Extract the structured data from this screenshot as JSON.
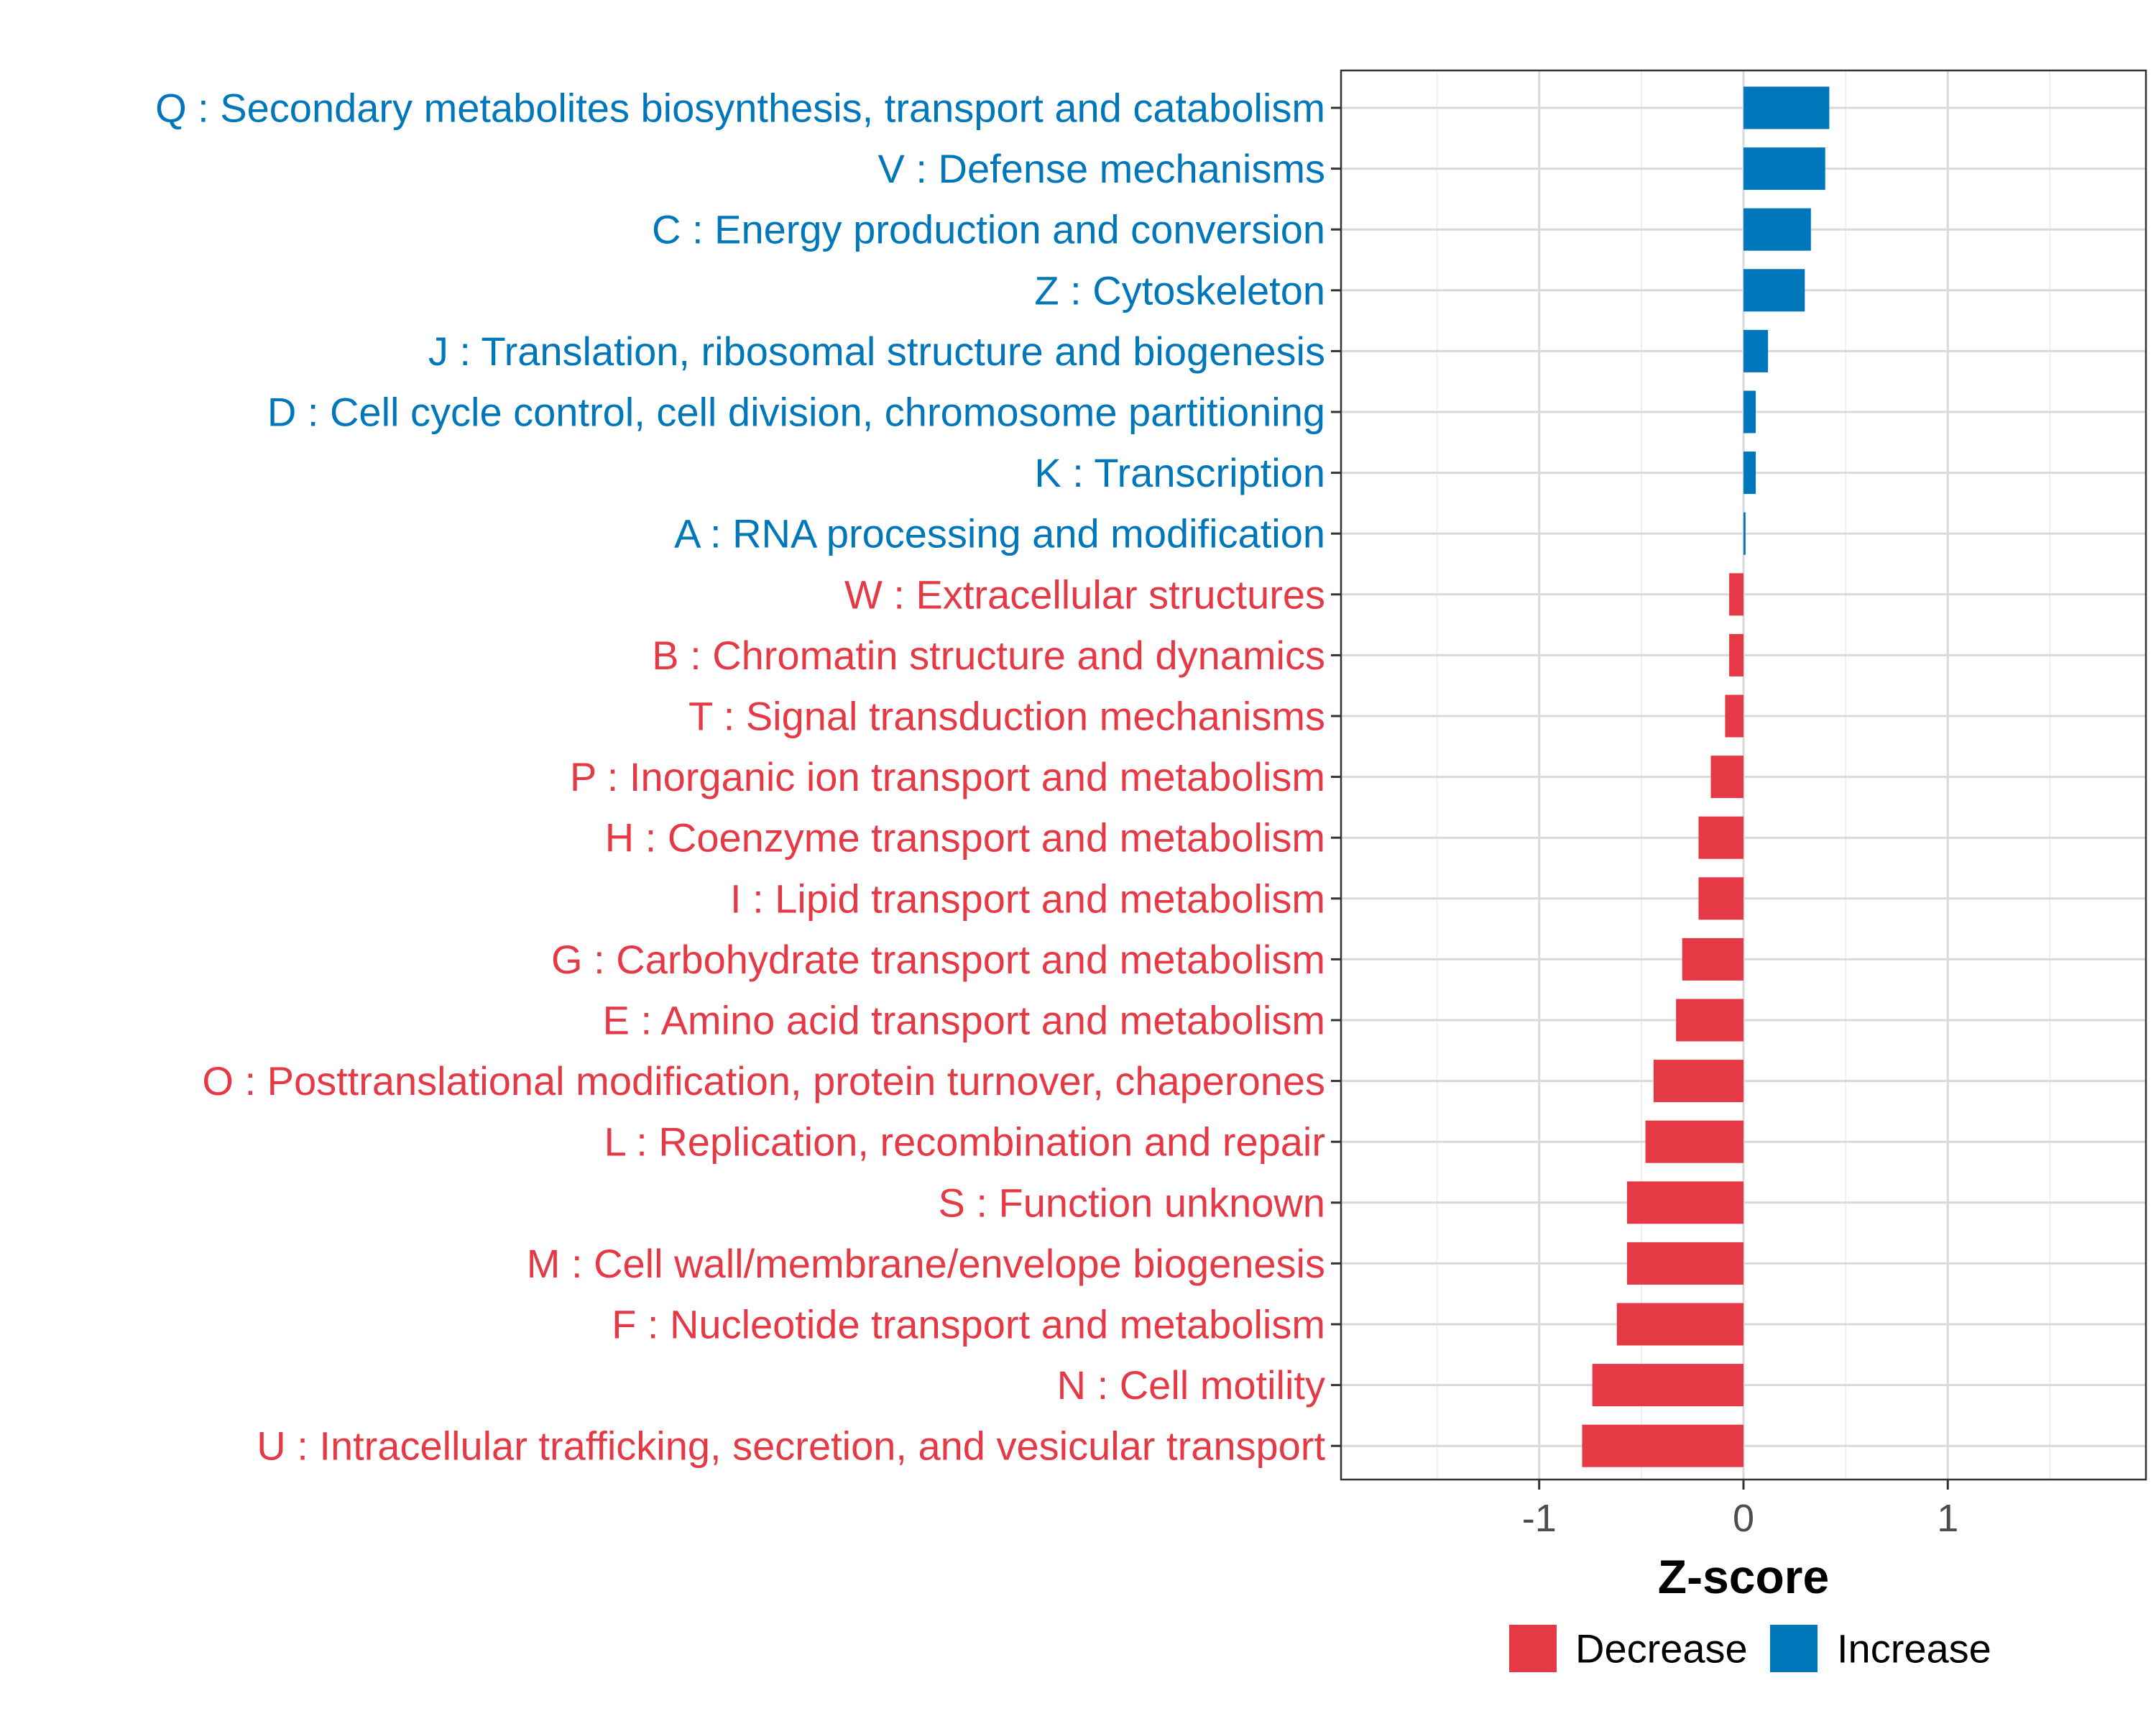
{
  "chart_data": {
    "type": "bar",
    "orientation": "horizontal",
    "title": "",
    "xlabel": "Z-score",
    "ylabel": "",
    "xlim": [
      -1.97,
      1.97
    ],
    "xticks": [
      -1,
      0,
      1
    ],
    "xtick_labels": [
      "-1",
      "0",
      "1"
    ],
    "grid": true,
    "legend_position": "bottom",
    "colors": {
      "Decrease": "#E63946",
      "Increase": "#0077BB"
    },
    "legend": [
      {
        "name": "Decrease",
        "color": "#E63946"
      },
      {
        "name": "Increase",
        "color": "#0077BB"
      }
    ],
    "categories": [
      "Q : Secondary metabolites biosynthesis, transport and catabolism",
      "V : Defense mechanisms",
      "C : Energy production and conversion",
      "Z : Cytoskeleton",
      "J : Translation, ribosomal structure and biogenesis",
      "D : Cell cycle control, cell division, chromosome partitioning",
      "K : Transcription",
      "A : RNA processing and modification",
      "W : Extracellular structures",
      "B : Chromatin structure and dynamics",
      "T : Signal transduction mechanisms",
      "P : Inorganic ion transport and metabolism",
      "H : Coenzyme transport and metabolism",
      "I : Lipid transport and metabolism",
      "G : Carbohydrate transport and metabolism",
      "E : Amino acid transport and metabolism",
      "O : Posttranslational modification, protein turnover, chaperones",
      "L : Replication, recombination and repair",
      "S : Function unknown",
      "M : Cell wall/membrane/envelope biogenesis",
      "F : Nucleotide transport and metabolism",
      "N : Cell motility",
      "U : Intracellular trafficking, secretion, and vesicular transport"
    ],
    "values": [
      0.42,
      0.4,
      0.33,
      0.3,
      0.12,
      0.06,
      0.06,
      0.01,
      -0.07,
      -0.07,
      -0.09,
      -0.16,
      -0.22,
      -0.22,
      -0.3,
      -0.33,
      -0.44,
      -0.48,
      -0.57,
      -0.57,
      -0.62,
      -0.74,
      -0.79
    ],
    "groups": [
      "Increase",
      "Increase",
      "Increase",
      "Increase",
      "Increase",
      "Increase",
      "Increase",
      "Increase",
      "Decrease",
      "Decrease",
      "Decrease",
      "Decrease",
      "Decrease",
      "Decrease",
      "Decrease",
      "Decrease",
      "Decrease",
      "Decrease",
      "Decrease",
      "Decrease",
      "Decrease",
      "Decrease",
      "Decrease"
    ]
  }
}
